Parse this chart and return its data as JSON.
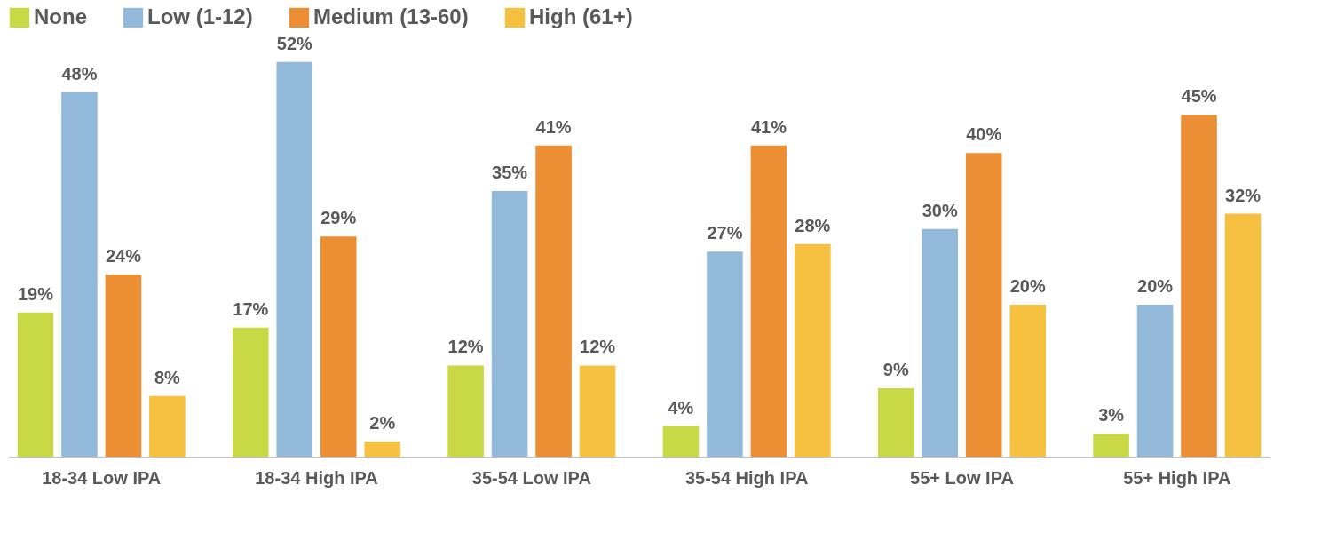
{
  "chart_data": {
    "type": "bar",
    "categories": [
      "18-34 Low IPA",
      "18-34 High IPA",
      "35-54 Low IPA",
      "35-54 High IPA",
      "55+ Low IPA",
      "55+ High IPA"
    ],
    "series": [
      {
        "name": "None",
        "color": "#c9d845",
        "values": [
          19,
          17,
          12,
          4,
          9,
          3
        ],
        "value_labels": [
          "19%",
          "17%",
          "12%",
          "4%",
          "9%",
          "3%"
        ]
      },
      {
        "name": "Low (1-12)",
        "color": "#92b9d9",
        "values": [
          48,
          52,
          35,
          27,
          30,
          20
        ],
        "value_labels": [
          "48%",
          "52%",
          "35%",
          "27%",
          "30%",
          "20%"
        ]
      },
      {
        "name": "Medium (13-60)",
        "color": "#ec8f34",
        "values": [
          24,
          29,
          41,
          41,
          40,
          45
        ],
        "value_labels": [
          "24%",
          "29%",
          "41%",
          "41%",
          "40%",
          "45%"
        ]
      },
      {
        "name": "High (61+)",
        "color": "#f6c041",
        "values": [
          8,
          2,
          12,
          28,
          20,
          32
        ],
        "value_labels": [
          "8%",
          "2%",
          "12%",
          "28%",
          "20%",
          "32%"
        ]
      }
    ],
    "legend": "top",
    "tick_labels": "x"
  }
}
